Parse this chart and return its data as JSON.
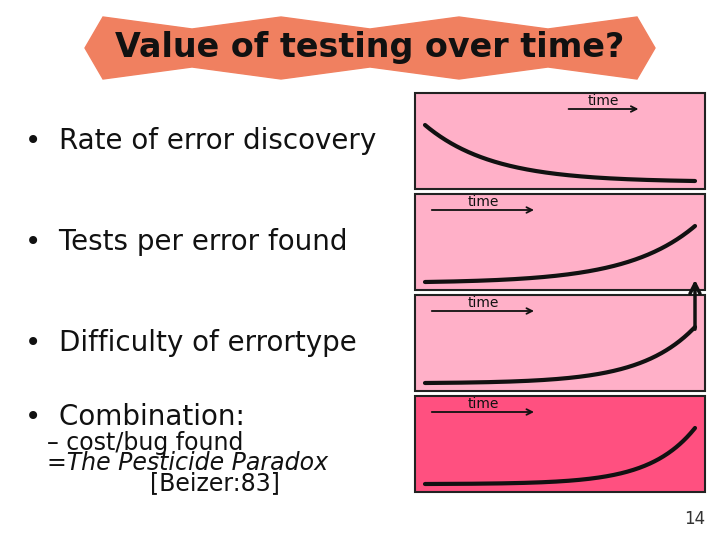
{
  "title": "Value of testing over time?",
  "title_bg": "#F08060",
  "slide_bg": "#FFFFFF",
  "bullet_items": [
    "Rate of error discovery",
    "Tests per error found",
    "Difficulty of errortype",
    "Combination:"
  ],
  "sub_items": [
    "– cost/bug found",
    "=The Pesticide Paradox",
    "[Beizer:83]"
  ],
  "chart_bg_light": "#FFB0C8",
  "chart_bg_dark": "#FF5080",
  "curve_color": "#111111",
  "page_number": "14",
  "bullet_fontsize": 20,
  "sub_fontsize": 17,
  "time_label_positions": [
    "upper_right",
    "upper_left",
    "upper_left",
    "upper_left"
  ]
}
